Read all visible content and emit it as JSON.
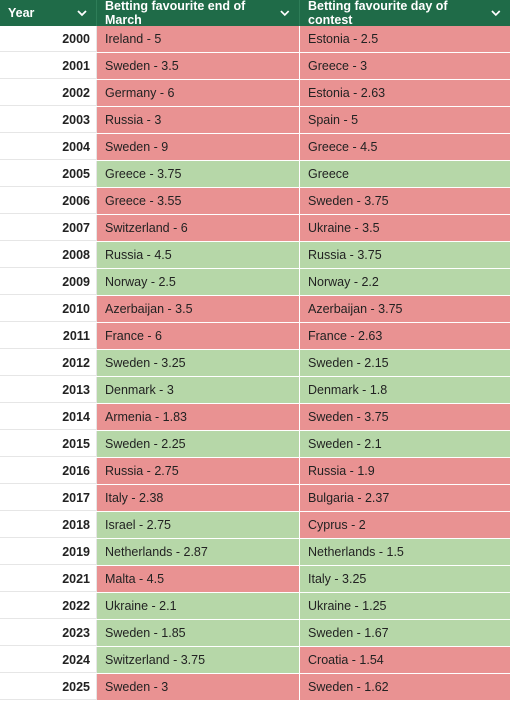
{
  "header": {
    "year": "Year",
    "march": "Betting favourite end of March",
    "contest": "Betting favourite day of contest"
  },
  "colors": {
    "header_bg": "#1f6b48",
    "red": "#e99292",
    "green": "#b6d7a8"
  },
  "rows": [
    {
      "year": "2000",
      "march": "Ireland - 5",
      "march_color": "red",
      "contest": "Estonia - 2.5",
      "contest_color": "red"
    },
    {
      "year": "2001",
      "march": "Sweden - 3.5",
      "march_color": "red",
      "contest": "Greece - 3",
      "contest_color": "red"
    },
    {
      "year": "2002",
      "march": "Germany - 6",
      "march_color": "red",
      "contest": "Estonia - 2.63",
      "contest_color": "red"
    },
    {
      "year": "2003",
      "march": "Russia - 3",
      "march_color": "red",
      "contest": "Spain - 5",
      "contest_color": "red"
    },
    {
      "year": "2004",
      "march": "Sweden - 9",
      "march_color": "red",
      "contest": "Greece - 4.5",
      "contest_color": "red"
    },
    {
      "year": "2005",
      "march": "Greece - 3.75",
      "march_color": "green",
      "contest": "Greece",
      "contest_color": "green"
    },
    {
      "year": "2006",
      "march": "Greece - 3.55",
      "march_color": "red",
      "contest": "Sweden - 3.75",
      "contest_color": "red"
    },
    {
      "year": "2007",
      "march": "Switzerland - 6",
      "march_color": "red",
      "contest": "Ukraine - 3.5",
      "contest_color": "red"
    },
    {
      "year": "2008",
      "march": "Russia - 4.5",
      "march_color": "green",
      "contest": "Russia - 3.75",
      "contest_color": "green"
    },
    {
      "year": "2009",
      "march": "Norway - 2.5",
      "march_color": "green",
      "contest": "Norway - 2.2",
      "contest_color": "green"
    },
    {
      "year": "2010",
      "march": "Azerbaijan - 3.5",
      "march_color": "red",
      "contest": "Azerbaijan - 3.75",
      "contest_color": "red"
    },
    {
      "year": "2011",
      "march": "France - 6",
      "march_color": "red",
      "contest": "France - 2.63",
      "contest_color": "red"
    },
    {
      "year": "2012",
      "march": "Sweden - 3.25",
      "march_color": "green",
      "contest": "Sweden - 2.15",
      "contest_color": "green"
    },
    {
      "year": "2013",
      "march": "Denmark - 3",
      "march_color": "green",
      "contest": "Denmark - 1.8",
      "contest_color": "green"
    },
    {
      "year": "2014",
      "march": "Armenia - 1.83",
      "march_color": "red",
      "contest": "Sweden - 3.75",
      "contest_color": "red"
    },
    {
      "year": "2015",
      "march": "Sweden - 2.25",
      "march_color": "green",
      "contest": "Sweden - 2.1",
      "contest_color": "green"
    },
    {
      "year": "2016",
      "march": "Russia - 2.75",
      "march_color": "red",
      "contest": "Russia - 1.9",
      "contest_color": "red"
    },
    {
      "year": "2017",
      "march": "Italy - 2.38",
      "march_color": "red",
      "contest": "Bulgaria - 2.37",
      "contest_color": "red"
    },
    {
      "year": "2018",
      "march": "Israel - 2.75",
      "march_color": "green",
      "contest": "Cyprus - 2",
      "contest_color": "red"
    },
    {
      "year": "2019",
      "march": "Netherlands - 2.87",
      "march_color": "green",
      "contest": "Netherlands - 1.5",
      "contest_color": "green"
    },
    {
      "year": "2021",
      "march": "Malta - 4.5",
      "march_color": "red",
      "contest": "Italy - 3.25",
      "contest_color": "green"
    },
    {
      "year": "2022",
      "march": "Ukraine - 2.1",
      "march_color": "green",
      "contest": "Ukraine - 1.25",
      "contest_color": "green"
    },
    {
      "year": "2023",
      "march": "Sweden - 1.85",
      "march_color": "green",
      "contest": "Sweden - 1.67",
      "contest_color": "green"
    },
    {
      "year": "2024",
      "march": "Switzerland - 3.75",
      "march_color": "green",
      "contest": "Croatia - 1.54",
      "contest_color": "red"
    },
    {
      "year": "2025",
      "march": "Sweden - 3",
      "march_color": "red",
      "contest": "Sweden - 1.62",
      "contest_color": "red"
    }
  ]
}
